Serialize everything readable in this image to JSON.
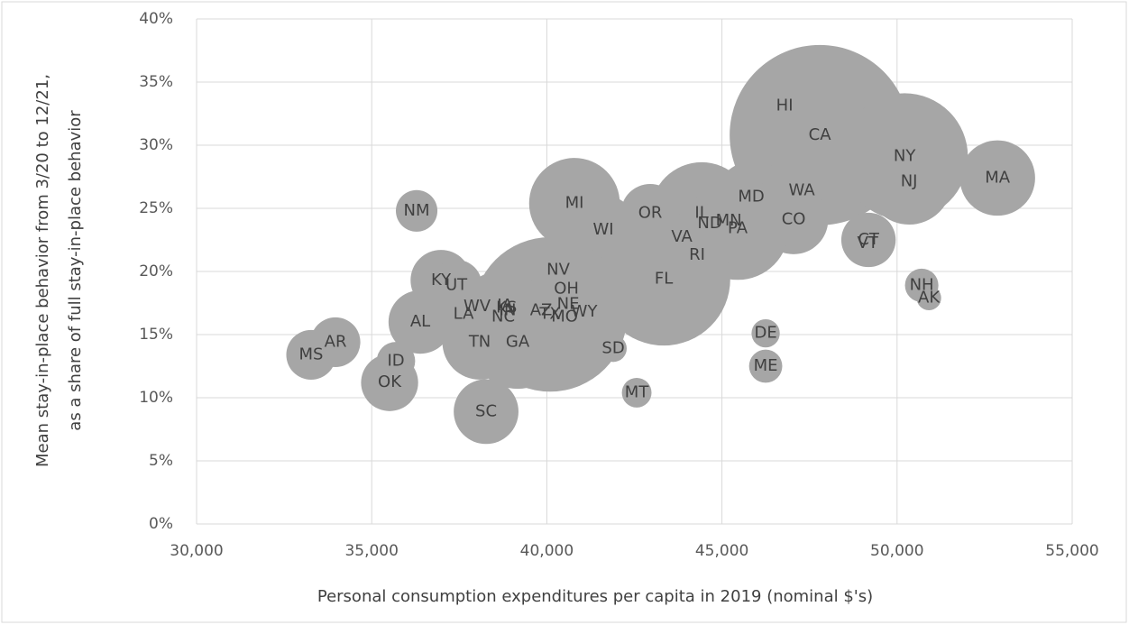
{
  "chart_data": {
    "type": "bubble",
    "x_label": "Personal consumption expenditures per capita in 2019 (nominal $'s)",
    "y_label": [
      "Mean stay-in-place behavior from 3/20 to 12/21,",
      "as a share of full stay-in-place behavior"
    ],
    "color": "#a6a6a6",
    "grid": true,
    "xlim": [
      30000,
      55000
    ],
    "xticks": [
      {
        "value": 30000,
        "label": "30,000"
      },
      {
        "value": 35000,
        "label": "35,000"
      },
      {
        "value": 40000,
        "label": "40,000"
      },
      {
        "value": 45000,
        "label": "45,000"
      },
      {
        "value": 50000,
        "label": "50,000"
      },
      {
        "value": 55000,
        "label": "55,000"
      }
    ],
    "ylim": [
      0,
      40
    ],
    "yticks": [
      {
        "value": 0,
        "label": "0%"
      },
      {
        "value": 5,
        "label": "5%"
      },
      {
        "value": 10,
        "label": "10%"
      },
      {
        "value": 15,
        "label": "15%"
      },
      {
        "value": 20,
        "label": "20%"
      },
      {
        "value": 25,
        "label": "25%"
      },
      {
        "value": 30,
        "label": "30%"
      },
      {
        "value": 35,
        "label": "35%"
      },
      {
        "value": 40,
        "label": "40%"
      }
    ],
    "labels": [
      "HI",
      "CA",
      "NY",
      "NJ",
      "MA",
      "WA",
      "MD",
      "CO",
      "IL",
      "MN",
      "ND",
      "PA",
      "VA",
      "RI",
      "OR",
      "MI",
      "WI",
      "CT",
      "VT",
      "NH",
      "AK",
      "DE",
      "ME",
      "MT",
      "SD",
      "SC",
      "FL",
      "NV",
      "OH",
      "NE",
      "WY",
      "MO",
      "AZ",
      "TX",
      "WV",
      "IA",
      "KS",
      "IN",
      "NC",
      "LA",
      "TN",
      "GA",
      "KY",
      "UT",
      "AL",
      "AR",
      "MS",
      "ID",
      "OK",
      "NM"
    ],
    "x": [
      46789,
      47793,
      50214,
      50343,
      52866,
      47278,
      45836,
      47046,
      44420,
      45193,
      44652,
      45450,
      43854,
      44291,
      42952,
      40789,
      41613,
      49184,
      49158,
      50703,
      50909,
      46248,
      46248,
      42566,
      41897,
      38266,
      43339,
      40326,
      40558,
      40609,
      41073,
      40506,
      39837,
      40094,
      38008,
      38807,
      38850,
      38884,
      38755,
      37622,
      38086,
      39167,
      36978,
      37416,
      36386,
      33966,
      33270,
      35691,
      35511,
      36283
    ],
    "y": [
      33.1,
      30.8,
      29.1,
      27.1,
      27.4,
      26.4,
      25.9,
      24.1,
      24.6,
      24.0,
      23.8,
      23.4,
      22.7,
      21.3,
      24.6,
      25.4,
      23.3,
      22.5,
      22.2,
      18.9,
      17.9,
      15.1,
      12.5,
      10.4,
      13.9,
      8.9,
      19.4,
      20.1,
      18.6,
      17.4,
      16.8,
      16.4,
      16.9,
      16.6,
      17.2,
      17.3,
      17.1,
      16.9,
      16.4,
      16.6,
      14.4,
      14.4,
      19.3,
      18.9,
      16.0,
      14.4,
      13.4,
      12.9,
      11.2,
      24.8
    ],
    "sizes": [
      1.4,
      39.5,
      19.5,
      8.9,
      6.9,
      7.6,
      6.0,
      5.8,
      12.7,
      5.6,
      0.76,
      12.8,
      8.5,
      1.06,
      4.2,
      10.0,
      5.8,
      3.6,
      0.62,
      1.36,
      0.73,
      0.97,
      1.34,
      1.07,
      0.88,
      5.1,
      21.5,
      3.1,
      11.7,
      1.9,
      0.58,
      6.1,
      7.3,
      29.0,
      1.8,
      3.2,
      2.9,
      6.7,
      10.5,
      4.6,
      6.8,
      10.6,
      4.5,
      3.2,
      4.9,
      3.0,
      3.0,
      1.8,
      3.96,
      2.1
    ]
  }
}
